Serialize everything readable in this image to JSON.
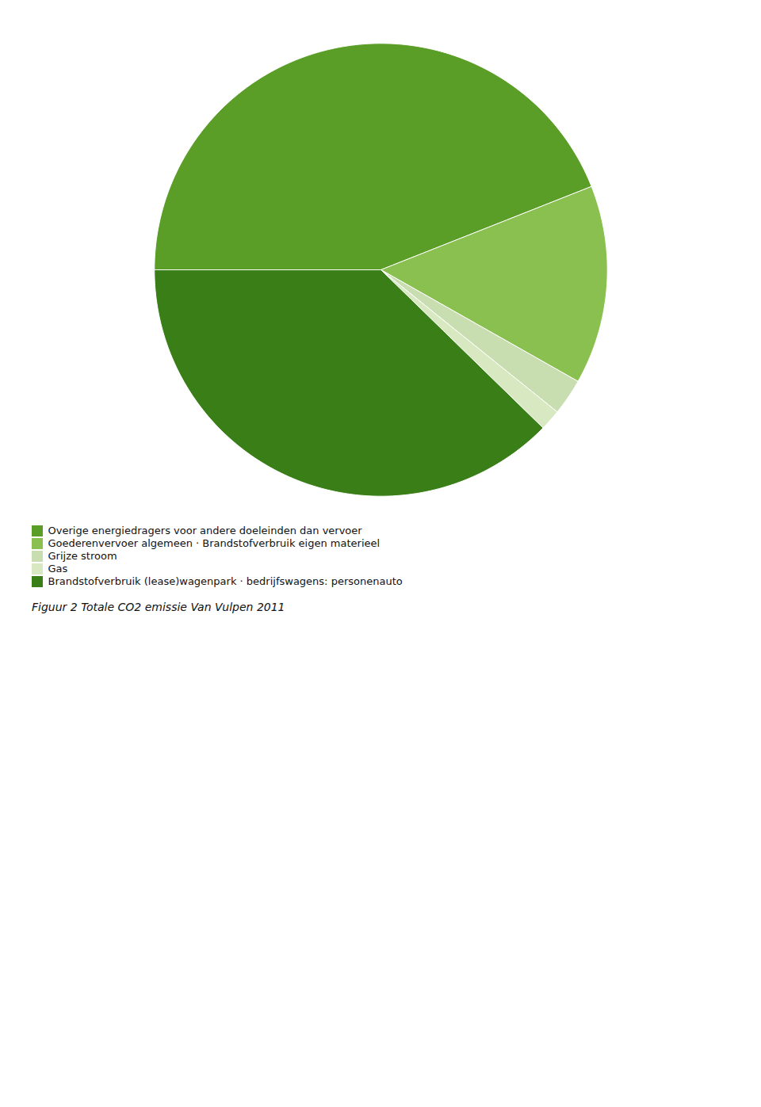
{
  "chart_data": {
    "type": "pie",
    "title": "Figuur 2 Totale CO2 emissie Van Vulpen 2011",
    "categories": [
      "Overige energiedragers voor andere doeleinden dan vervoer",
      "Goederenvervoer algemeen · Brandstofverbruik eigen materieel",
      "Grijze stroom",
      "Gas",
      "Brandstofverbruik (lease)wagenpark · bedrijfswagens: personenauto"
    ],
    "values": [
      44.0,
      14.2,
      2.6,
      1.5,
      37.7
    ],
    "colors": [
      "#5a9e28",
      "#8ac050",
      "#c8ddb0",
      "#d8e8c0",
      "#3a7e18"
    ],
    "legend": "lower left"
  }
}
